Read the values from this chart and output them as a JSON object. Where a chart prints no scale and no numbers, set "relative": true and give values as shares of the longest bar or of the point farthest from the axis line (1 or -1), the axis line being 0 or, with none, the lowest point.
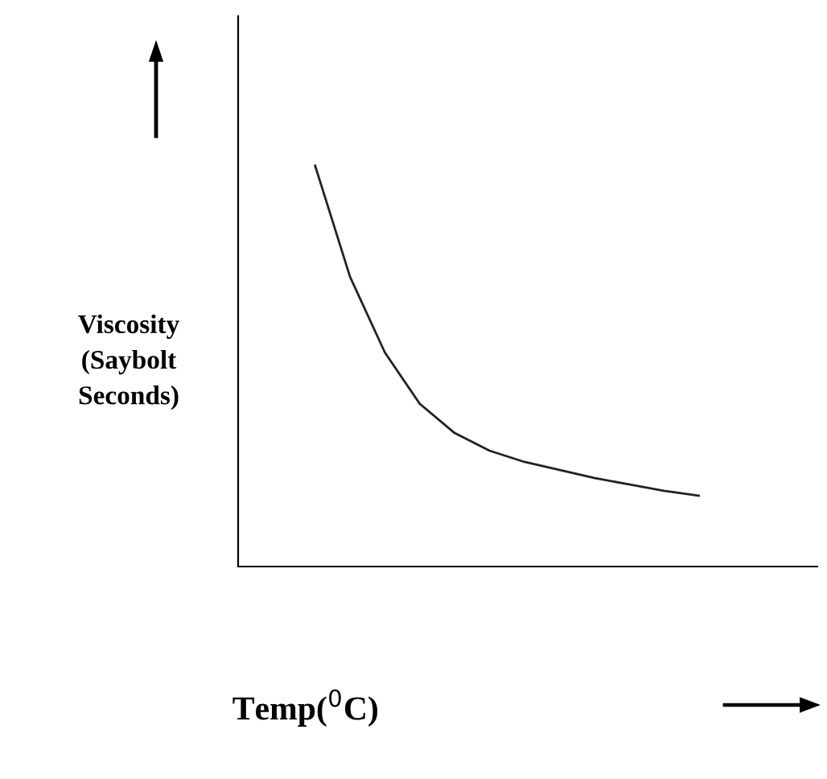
{
  "chart_data": {
    "type": "line",
    "relative": true,
    "xlabel": "Temp($^{0}$C)",
    "ylabel": "Viscosity\n(Saybolt\nSeconds)",
    "categories": [
      null,
      null,
      null,
      null,
      null,
      null,
      null,
      null,
      null,
      null,
      null,
      null
    ],
    "series": [
      {
        "color": "#222222",
        "values": [
          1,
          0.723,
          0.534,
          0.406,
          0.333,
          0.289,
          0.261,
          0.241,
          0.221,
          0.205,
          0.189,
          0.177
        ]
      }
    ],
    "legend": false,
    "marker": "none",
    "line_style": "solid"
  }
}
